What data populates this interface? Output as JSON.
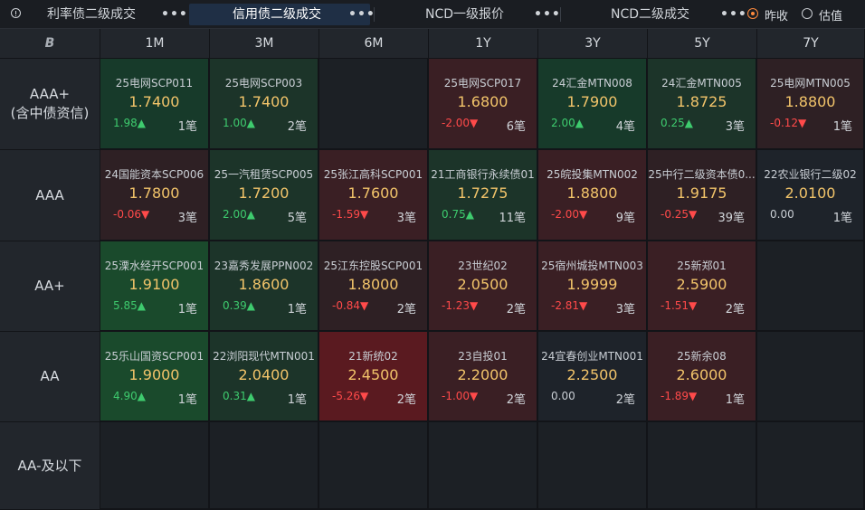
{
  "tabs": [
    {
      "label": "利率债二级成交",
      "more": "•••",
      "active": false
    },
    {
      "label": "信用债二级成交",
      "more": "•••",
      "active": true
    },
    {
      "label": "NCD一级报价",
      "more": "•••",
      "active": false
    },
    {
      "label": "NCD二级成交",
      "more": "•••",
      "active": false
    }
  ],
  "price_mode": {
    "options": [
      "昨收",
      "估值"
    ],
    "selected": "昨收"
  },
  "logo_text": "B",
  "columns": [
    "1M",
    "3M",
    "6M",
    "1Y",
    "3Y",
    "5Y",
    "7Y"
  ],
  "rows": [
    {
      "label": "AAA+",
      "sublabel": "(含中债资信)"
    },
    {
      "label": "AAA",
      "sublabel": ""
    },
    {
      "label": "AA+",
      "sublabel": ""
    },
    {
      "label": "AA",
      "sublabel": ""
    },
    {
      "label": "AA-及以下",
      "sublabel": ""
    }
  ],
  "colors": {
    "green_strong": "#1a4a2c",
    "green": "#173a2a",
    "green_soft": "#1c3429",
    "red_strong": "#5a1a20",
    "red": "#3a1f24",
    "red_soft": "#2e2024",
    "neutral": "#1e232a",
    "empty": "#1c2025"
  },
  "cells": [
    [
      {
        "name": "25电网SCP011",
        "yield": "1.7400",
        "change": "1.98▲",
        "dir": "up",
        "count": "1笔",
        "bg": "green"
      },
      {
        "name": "25电网SCP003",
        "yield": "1.7400",
        "change": "1.00▲",
        "dir": "up",
        "count": "2笔",
        "bg": "green_soft"
      },
      null,
      {
        "name": "25电网SCP017",
        "yield": "1.6800",
        "change": "-2.00▼",
        "dir": "dn",
        "count": "6笔",
        "bg": "red"
      },
      {
        "name": "24汇金MTN008",
        "yield": "1.7900",
        "change": "2.00▲",
        "dir": "up",
        "count": "4笔",
        "bg": "green"
      },
      {
        "name": "24汇金MTN005",
        "yield": "1.8725",
        "change": "0.25▲",
        "dir": "up",
        "count": "3笔",
        "bg": "green_soft"
      },
      {
        "name": "25电网MTN005",
        "yield": "1.8800",
        "change": "-0.12▼",
        "dir": "dn",
        "count": "1笔",
        "bg": "red_soft"
      }
    ],
    [
      {
        "name": "24国能资本SCP006",
        "yield": "1.7800",
        "change": "-0.06▼",
        "dir": "dn",
        "count": "3笔",
        "bg": "red_soft"
      },
      {
        "name": "25一汽租赁SCP005",
        "yield": "1.7200",
        "change": "2.00▲",
        "dir": "up",
        "count": "5笔",
        "bg": "green_soft"
      },
      {
        "name": "25张江高科SCP001",
        "yield": "1.7600",
        "change": "-1.59▼",
        "dir": "dn",
        "count": "3笔",
        "bg": "red"
      },
      {
        "name": "21工商银行永续债01",
        "yield": "1.7275",
        "change": "0.75▲",
        "dir": "up",
        "count": "11笔",
        "bg": "green_soft"
      },
      {
        "name": "25皖投集MTN002",
        "yield": "1.8800",
        "change": "-2.00▼",
        "dir": "dn",
        "count": "9笔",
        "bg": "red"
      },
      {
        "name": "25中行二级资本债0...",
        "yield": "1.9175",
        "change": "-0.25▼",
        "dir": "dn",
        "count": "39笔",
        "bg": "red_soft"
      },
      {
        "name": "22农业银行二级02",
        "yield": "2.0100",
        "change": "0.00",
        "dir": "flat",
        "count": "1笔",
        "bg": "neutral"
      }
    ],
    [
      {
        "name": "25溧水经开SCP001",
        "yield": "1.9100",
        "change": "5.85▲",
        "dir": "up",
        "count": "1笔",
        "bg": "green_strong"
      },
      {
        "name": "23嘉秀发展PPN002",
        "yield": "1.8600",
        "change": "0.39▲",
        "dir": "up",
        "count": "1笔",
        "bg": "green_soft"
      },
      {
        "name": "25江东控股SCP001",
        "yield": "1.8000",
        "change": "-0.84▼",
        "dir": "dn",
        "count": "2笔",
        "bg": "red_soft"
      },
      {
        "name": "23世纪02",
        "yield": "2.0500",
        "change": "-1.23▼",
        "dir": "dn",
        "count": "2笔",
        "bg": "red"
      },
      {
        "name": "25宿州城投MTN003",
        "yield": "1.9999",
        "change": "-2.81▼",
        "dir": "dn",
        "count": "3笔",
        "bg": "red"
      },
      {
        "name": "25新郑01",
        "yield": "2.5900",
        "change": "-1.51▼",
        "dir": "dn",
        "count": "2笔",
        "bg": "red"
      },
      null
    ],
    [
      {
        "name": "25乐山国资SCP001",
        "yield": "1.9000",
        "change": "4.90▲",
        "dir": "up",
        "count": "1笔",
        "bg": "green_strong"
      },
      {
        "name": "22浏阳现代MTN001",
        "yield": "2.0400",
        "change": "0.31▲",
        "dir": "up",
        "count": "1笔",
        "bg": "green_soft"
      },
      {
        "name": "21新统02",
        "yield": "2.4500",
        "change": "-5.26▼",
        "dir": "dn",
        "count": "2笔",
        "bg": "red_strong"
      },
      {
        "name": "23自投01",
        "yield": "2.2000",
        "change": "-1.00▼",
        "dir": "dn",
        "count": "2笔",
        "bg": "red"
      },
      {
        "name": "24宜春创业MTN001",
        "yield": "2.2500",
        "change": "0.00",
        "dir": "flat",
        "count": "2笔",
        "bg": "neutral"
      },
      {
        "name": "25新余08",
        "yield": "2.6000",
        "change": "-1.89▼",
        "dir": "dn",
        "count": "1笔",
        "bg": "red"
      },
      null
    ],
    [
      null,
      null,
      null,
      null,
      null,
      null,
      null
    ]
  ]
}
